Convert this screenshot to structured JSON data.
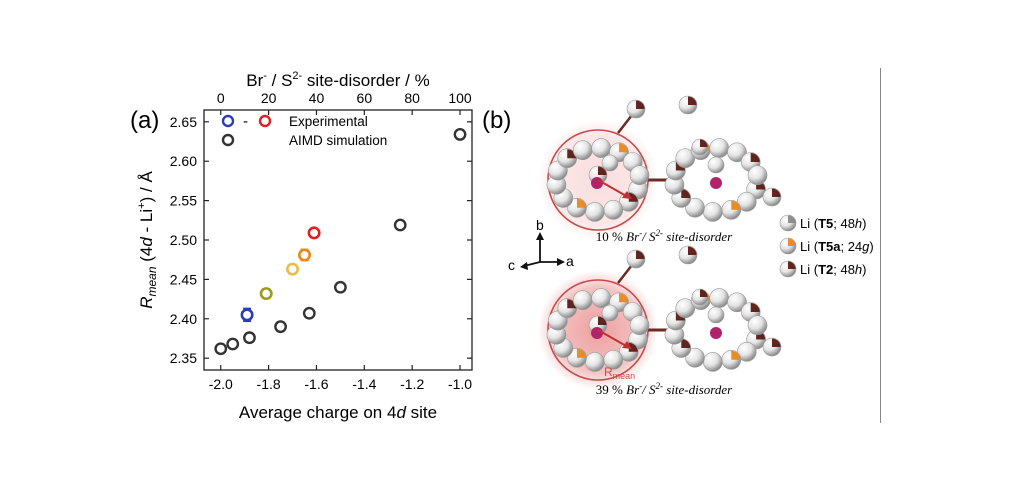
{
  "panel_a": {
    "label": "(a)",
    "chart_data": {
      "type": "scatter",
      "xlabel": "Average charge on 4d site",
      "ylabel": "R_mean (4d - Li+) / Å",
      "top_xlabel": "Br- / S2- site-disorder / %",
      "xlim": [
        -2.07,
        -0.95
      ],
      "ylim": [
        2.335,
        2.665
      ],
      "xticks": [
        "-2.0",
        "-1.8",
        "-1.6",
        "-1.4",
        "-1.2",
        "-1.0"
      ],
      "yticks": [
        "2.35",
        "2.40",
        "2.45",
        "2.50",
        "2.55",
        "2.60",
        "2.65"
      ],
      "top_xticks": [
        "0",
        "20",
        "40",
        "60",
        "80",
        "100"
      ],
      "legend": {
        "placement": "top-left",
        "experimental_label": "Experimental",
        "simulation_label": "AIMD simulation",
        "dash": "-"
      },
      "series": [
        {
          "name": "Experimental",
          "points": [
            {
              "x": -1.89,
              "y": 2.405,
              "err": 0.008,
              "color": "#2b3db5"
            },
            {
              "x": -1.81,
              "y": 2.432,
              "err": 0.006,
              "color": "#9b9b1e"
            },
            {
              "x": -1.7,
              "y": 2.463,
              "err": 0.006,
              "color": "#e8be4a"
            },
            {
              "x": -1.65,
              "y": 2.481,
              "err": 0.007,
              "color": "#e88a1a"
            },
            {
              "x": -1.61,
              "y": 2.509,
              "err": 0.003,
              "color": "#e02020"
            }
          ]
        },
        {
          "name": "AIMD simulation",
          "color": "#333333",
          "points": [
            {
              "x": -2.0,
              "y": 2.362
            },
            {
              "x": -1.95,
              "y": 2.368
            },
            {
              "x": -1.88,
              "y": 2.376
            },
            {
              "x": -1.75,
              "y": 2.39
            },
            {
              "x": -1.63,
              "y": 2.407
            },
            {
              "x": -1.5,
              "y": 2.44
            },
            {
              "x": -1.25,
              "y": 2.519
            },
            {
              "x": -1.0,
              "y": 2.634
            }
          ]
        }
      ]
    }
  },
  "panel_b": {
    "label": "(b)",
    "caption_top": "10 % Br-/ S2- site-disorder",
    "caption_bottom": "39 % Br-/ S2- site-disorder",
    "rmean_label": "R",
    "rmean_sub": "mean",
    "axes": {
      "b": "b",
      "c": "c",
      "a": "a"
    },
    "legend": [
      {
        "prefix": "Li (",
        "site": "T5",
        "suffix": "; 48h)",
        "color": "#8a8a8a"
      },
      {
        "prefix": "Li (",
        "site": "T5a",
        "suffix": "; 24g)",
        "color": "#e8891a"
      },
      {
        "prefix": "Li (",
        "site": "T2",
        "suffix": "; 48h)",
        "color": "#5a1a14"
      }
    ]
  }
}
